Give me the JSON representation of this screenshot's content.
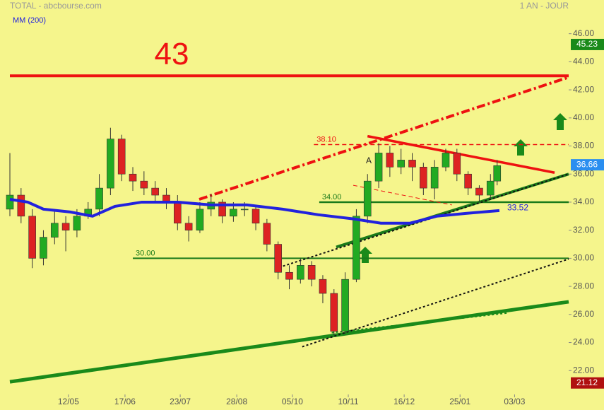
{
  "chart_data": {
    "type": "candlestick",
    "title": "TOTAL - abcbourse.com",
    "period": "1 AN - JOUR",
    "ma_name": "MM (200)",
    "xlim": [
      0,
      250
    ],
    "ylim": [
      20.2,
      48.4
    ],
    "xticks": [
      {
        "value": 26.2,
        "label": "12/05"
      },
      {
        "value": 51.5,
        "label": "17/06"
      },
      {
        "value": 76.2,
        "label": "23/07"
      },
      {
        "value": 101.5,
        "label": "28/08"
      },
      {
        "value": 126.4,
        "label": "05/10"
      },
      {
        "value": 151.4,
        "label": "10/11"
      },
      {
        "value": 176.4,
        "label": "16/12"
      },
      {
        "value": 201.4,
        "label": "25/01"
      },
      {
        "value": 225.8,
        "label": "03/03"
      }
    ],
    "yticks": [
      {
        "value": 22,
        "label": "22.00"
      },
      {
        "value": 24,
        "label": "24.00"
      },
      {
        "value": 26,
        "label": "26.00"
      },
      {
        "value": 28,
        "label": "28.00"
      },
      {
        "value": 30,
        "label": "30.00"
      },
      {
        "value": 32,
        "label": "32.00"
      },
      {
        "value": 34,
        "label": "34.00"
      },
      {
        "value": 36,
        "label": "36.00"
      },
      {
        "value": 38,
        "label": "38.00"
      },
      {
        "value": 40,
        "label": "40.00"
      },
      {
        "value": 42,
        "label": "42.00"
      },
      {
        "value": 44,
        "label": "44.00"
      },
      {
        "value": 46,
        "label": "46.00"
      }
    ],
    "up_color": "#22aa22",
    "down_color": "#dd2222",
    "x": [
      0,
      5,
      10,
      15,
      20,
      25,
      30,
      35,
      40,
      45,
      50,
      55,
      60,
      65,
      70,
      75,
      80,
      85,
      90,
      95,
      100,
      105,
      110,
      115,
      120,
      125,
      130,
      135,
      140,
      145,
      150,
      155,
      160,
      165,
      170,
      175,
      180,
      185,
      190,
      195,
      200,
      205,
      210,
      215,
      218
    ],
    "open": [
      33.5,
      34.5,
      33.0,
      30.0,
      31.5,
      32.5,
      32.0,
      33.0,
      33.5,
      35.0,
      38.5,
      36.0,
      35.5,
      35.0,
      34.5,
      34.0,
      32.5,
      32.0,
      33.5,
      34.0,
      33.0,
      33.5,
      33.5,
      32.5,
      31.0,
      29.0,
      28.5,
      29.5,
      28.5,
      27.5,
      24.8,
      28.5,
      33.0,
      35.5,
      37.5,
      36.5,
      37.0,
      36.5,
      35.0,
      36.5,
      37.5,
      36.0,
      35.0,
      34.5,
      35.5
    ],
    "high": [
      37.5,
      35.0,
      33.5,
      32.0,
      33.5,
      33.0,
      33.5,
      34.0,
      36.0,
      39.3,
      38.8,
      36.5,
      36.2,
      35.5,
      35.0,
      34.5,
      33.0,
      34.0,
      34.6,
      34.2,
      34.0,
      34.0,
      33.8,
      32.8,
      31.2,
      29.5,
      30.0,
      29.8,
      28.8,
      27.8,
      29.0,
      33.5,
      36.0,
      38.2,
      38.0,
      37.8,
      37.5,
      36.8,
      37.0,
      37.8,
      37.8,
      36.2,
      35.2,
      36.0,
      37.0
    ],
    "low": [
      33.0,
      32.5,
      29.3,
      29.5,
      31.0,
      30.5,
      31.5,
      32.8,
      33.0,
      34.5,
      35.5,
      34.8,
      34.5,
      34.0,
      33.5,
      32.0,
      31.2,
      31.8,
      33.0,
      32.5,
      32.6,
      33.0,
      32.0,
      30.5,
      28.5,
      27.8,
      28.2,
      28.0,
      26.8,
      24.5,
      24.6,
      28.3,
      32.5,
      35.0,
      35.8,
      36.0,
      35.5,
      34.5,
      34.2,
      36.2,
      35.5,
      34.5,
      34.0,
      34.2,
      35.2
    ],
    "close": [
      34.5,
      33.0,
      30.0,
      31.5,
      32.5,
      32.0,
      33.0,
      33.5,
      35.0,
      38.5,
      36.0,
      35.5,
      35.0,
      34.5,
      34.0,
      32.5,
      32.0,
      33.5,
      34.0,
      33.0,
      33.5,
      33.5,
      32.5,
      31.0,
      29.0,
      28.5,
      29.5,
      28.5,
      27.5,
      24.8,
      28.5,
      33.0,
      35.5,
      37.5,
      36.5,
      37.0,
      36.5,
      35.0,
      36.5,
      37.5,
      36.0,
      35.0,
      34.5,
      35.5,
      36.6
    ],
    "moving_average": {
      "color": "#2222dd",
      "x": [
        0,
        8,
        15,
        27,
        37,
        47,
        59,
        75,
        90,
        106,
        122,
        138,
        154,
        166,
        179,
        191,
        204,
        219
      ],
      "values": [
        34.2,
        34.0,
        33.5,
        33.3,
        33.0,
        33.7,
        34.0,
        34.0,
        33.8,
        33.8,
        33.5,
        33.1,
        32.8,
        32.5,
        32.5,
        33.0,
        33.2,
        33.4
      ]
    },
    "ma_last": 33.52,
    "levels": [
      {
        "value": 43,
        "label": "43",
        "x_start": 0,
        "color": "#ee1111",
        "style": "solid",
        "width": 4
      },
      {
        "value": 38.1,
        "label": "38.10",
        "x_start": 136,
        "color": "#ee1111",
        "style": "dashed",
        "width": 1.5
      },
      {
        "value": 34,
        "label": "34.00",
        "x_start": 138.4,
        "color": "#1a7a1a",
        "style": "solid",
        "width": 2.5
      },
      {
        "value": 30,
        "label": "30.00",
        "x_start": 55,
        "color": "#1a7a1a",
        "style": "solid",
        "width": 2
      }
    ],
    "trendlines": [
      {
        "x": [
          0,
          250
        ],
        "y": [
          21.2,
          26.9
        ],
        "color": "#1a8a1a",
        "style": "solid",
        "width": 5
      },
      {
        "x": [
          84.7,
          250
        ],
        "y": [
          34.2,
          42.9
        ],
        "color": "#ee1111",
        "style": "dashdot",
        "width": 4
      },
      {
        "x": [
          160,
          243.7
        ],
        "y": [
          38.7,
          36.1
        ],
        "color": "#ee1111",
        "style": "solid",
        "width": 3.5
      },
      {
        "x": [
          146,
          250
        ],
        "y": [
          30.8,
          36.0
        ],
        "color": "#1a7a1a",
        "style": "solid",
        "width": 4
      },
      {
        "x": [
          120.4,
          250
        ],
        "y": [
          29.35,
          36.0
        ],
        "color": "#111111",
        "style": "dotted",
        "width": 2
      },
      {
        "x": [
          130.8,
          250
        ],
        "y": [
          23.7,
          29.95
        ],
        "color": "#111111",
        "style": "dotted",
        "width": 2
      },
      {
        "x": [
          144,
          222.5
        ],
        "y": [
          24.7,
          26.1
        ],
        "color": "#1a8a1a",
        "style": "dotted",
        "width": 2
      },
      {
        "x": [
          153.6,
          197.8
        ],
        "y": [
          35.2,
          33.8
        ],
        "color": "#ee1111",
        "style": "dashed",
        "width": 1
      }
    ],
    "price_tags": [
      {
        "value": 45.23,
        "color": "#1a8a1a"
      },
      {
        "value": 36.66,
        "color": "#2a8ef0"
      },
      {
        "value": 21.12,
        "color": "#b01010"
      }
    ],
    "annotation": "A"
  }
}
